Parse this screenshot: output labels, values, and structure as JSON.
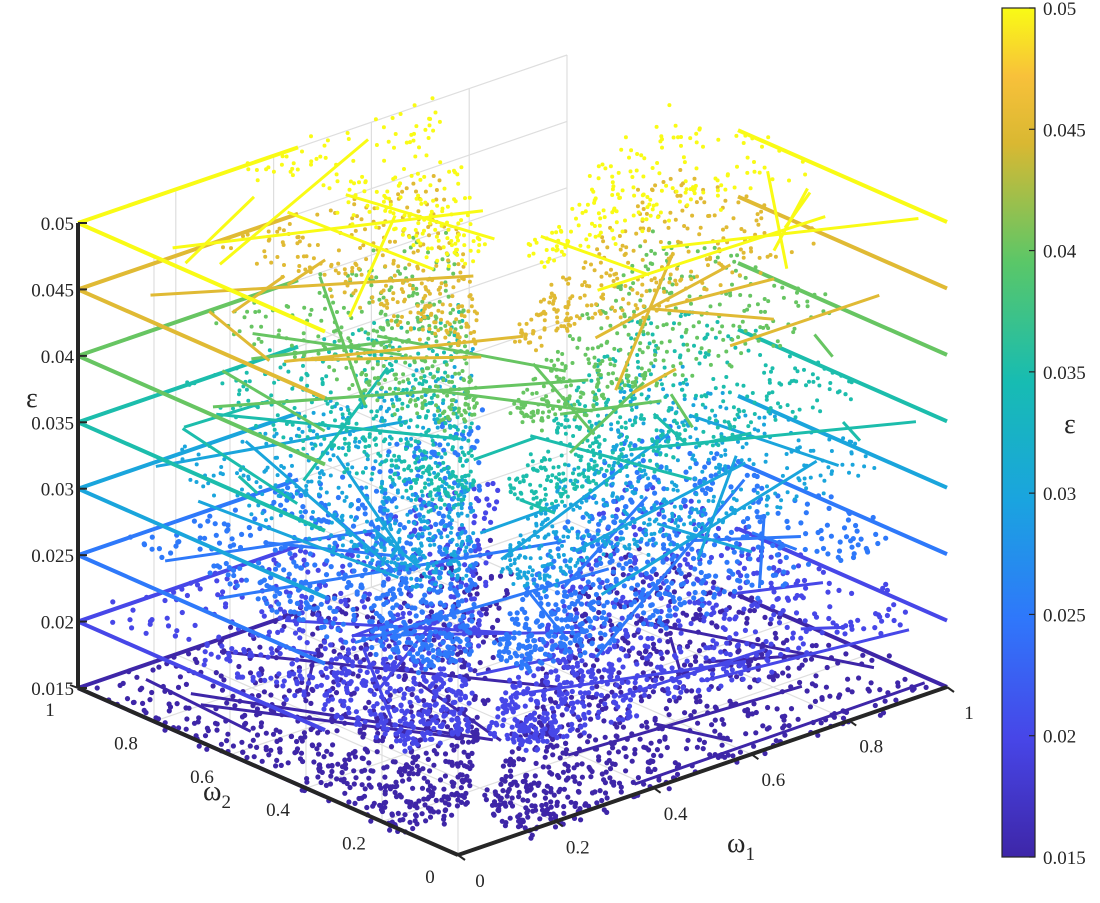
{
  "chart_data": {
    "type": "scatter",
    "title": "",
    "xlabel": "ω",
    "xlabel_sub": "1",
    "ylabel": "ω",
    "ylabel_sub": "2",
    "zlabel": "ε",
    "colorbar_label": "ε",
    "xlim": [
      0,
      1
    ],
    "ylim": [
      0,
      1
    ],
    "zlim": [
      0.015,
      0.05
    ],
    "color_range": [
      0.015,
      0.05
    ],
    "colormap": "parula",
    "grid": true,
    "colorbar_position": "right",
    "x_ticks": [
      "0",
      "0.2",
      "0.4",
      "0.6",
      "0.8",
      "1"
    ],
    "y_ticks": [
      "0",
      "0.2",
      "0.4",
      "0.6",
      "0.8",
      "1"
    ],
    "z_ticks": [
      "0.015",
      "0.02",
      "0.025",
      "0.03",
      "0.035",
      "0.04",
      "0.045",
      "0.05"
    ],
    "colorbar_ticks": [
      "0.015",
      "0.02",
      "0.025",
      "0.03",
      "0.035",
      "0.04",
      "0.045",
      "0.05"
    ],
    "levels": [
      0.015,
      0.02,
      0.025,
      0.03,
      0.035,
      0.04,
      0.045,
      0.05
    ],
    "description_of_series": "Each epsilon level forms two wedge-shaped point clouds (one along the omega1 direction, one along the omega2 direction); wedges shrink toward the omega1=omega2 diagonal as epsilon increases, plus edge lines at omega=1."
  }
}
